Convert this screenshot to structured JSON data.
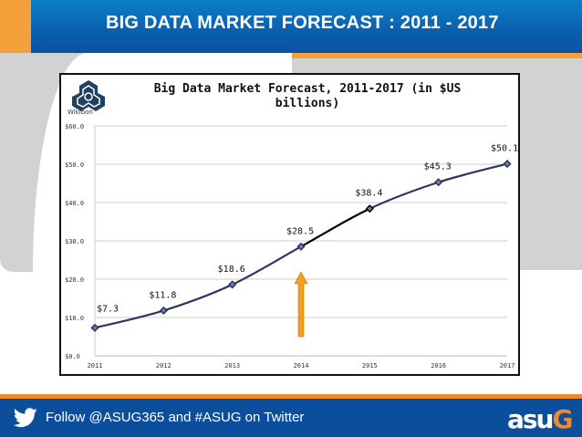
{
  "header": {
    "title": "BIG DATA MARKET FORECAST :  2011 - 2017"
  },
  "chart_box": {
    "logo_text": "Wikibon",
    "title_line1": "Big Data Market Forecast, 2011-2017 (in $US",
    "title_line2": "billions)"
  },
  "chart_data": {
    "type": "line",
    "title": "Big Data Market Forecast, 2011-2017 (in $US billions)",
    "xlabel": "",
    "ylabel": "",
    "categories": [
      "2011",
      "2012",
      "2013",
      "2014",
      "2015",
      "2016",
      "2017"
    ],
    "series": [
      {
        "name": "Big Data Market ($US billions)",
        "values": [
          7.3,
          11.8,
          18.6,
          28.5,
          38.4,
          45.3,
          50.1
        ]
      }
    ],
    "data_labels": [
      "$7.3",
      "$11.8",
      "$18.6",
      "$28.5",
      "$38.4",
      "$45.3",
      "$50.1"
    ],
    "y_ticks": [
      "$0.0",
      "$10.0",
      "$20.0",
      "$30.0",
      "$40.0",
      "$50.0",
      "$60.0"
    ],
    "ylim": [
      0,
      60
    ],
    "grid": true,
    "legend": "none",
    "annotations": [
      {
        "type": "arrow",
        "color": "#f0a020",
        "x": "2014",
        "direction": "up",
        "note": "upward arrow pointing to 2014 value"
      },
      {
        "type": "highlight-segment",
        "from": "2014",
        "to": "2015",
        "color": "#000000"
      }
    ],
    "colors": {
      "line": "#2e3560",
      "highlight": "#000000",
      "arrow": "#f0a020"
    }
  },
  "footer": {
    "text": "Follow @ASUG365 and #ASUG on Twitter",
    "logo_main": "asu",
    "logo_accent": "G"
  }
}
